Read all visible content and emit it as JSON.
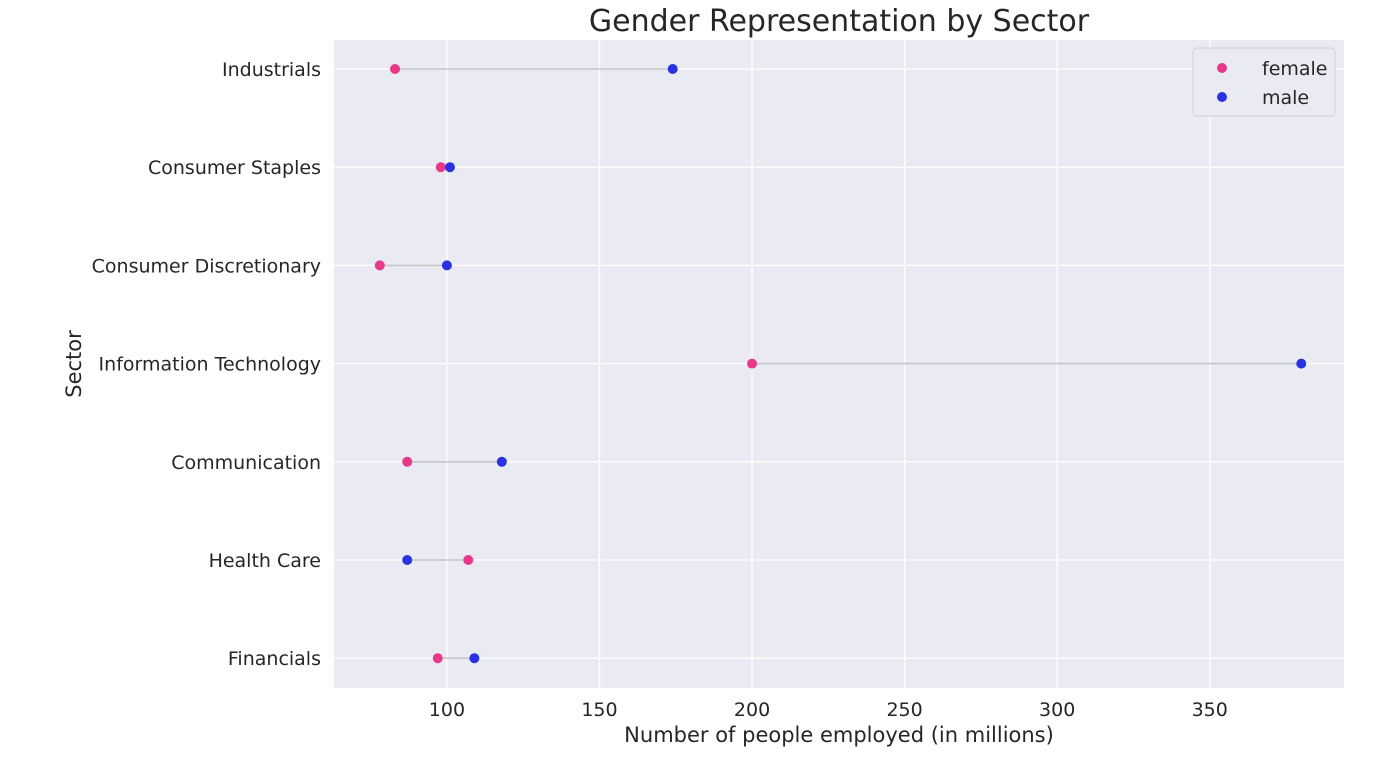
{
  "chart_data": {
    "type": "scatter",
    "subtype": "dumbbell",
    "title": "Gender Representation by Sector",
    "xlabel": "Number of people employed (in millions)",
    "ylabel": "Sector",
    "categories": [
      "Industrials",
      "Consumer Staples",
      "Consumer Discretionary",
      "Information Technology",
      "Communication",
      "Health Care",
      "Financials"
    ],
    "series": [
      {
        "name": "female",
        "color": "#e8388a",
        "values": [
          83,
          98,
          78,
          200,
          87,
          107,
          97
        ]
      },
      {
        "name": "male",
        "color": "#2832e0",
        "values": [
          174,
          101,
          100,
          380,
          118,
          87,
          109
        ]
      }
    ],
    "connector_color": "#c6c6ca",
    "xlim": [
      63,
      394
    ],
    "xticks": [
      100,
      150,
      200,
      250,
      300,
      350
    ],
    "xtick_labels": [
      "100",
      "150",
      "200",
      "250",
      "300",
      "350"
    ],
    "grid": true,
    "legend_position": "top-right",
    "background_color": "#eaeaf2"
  }
}
